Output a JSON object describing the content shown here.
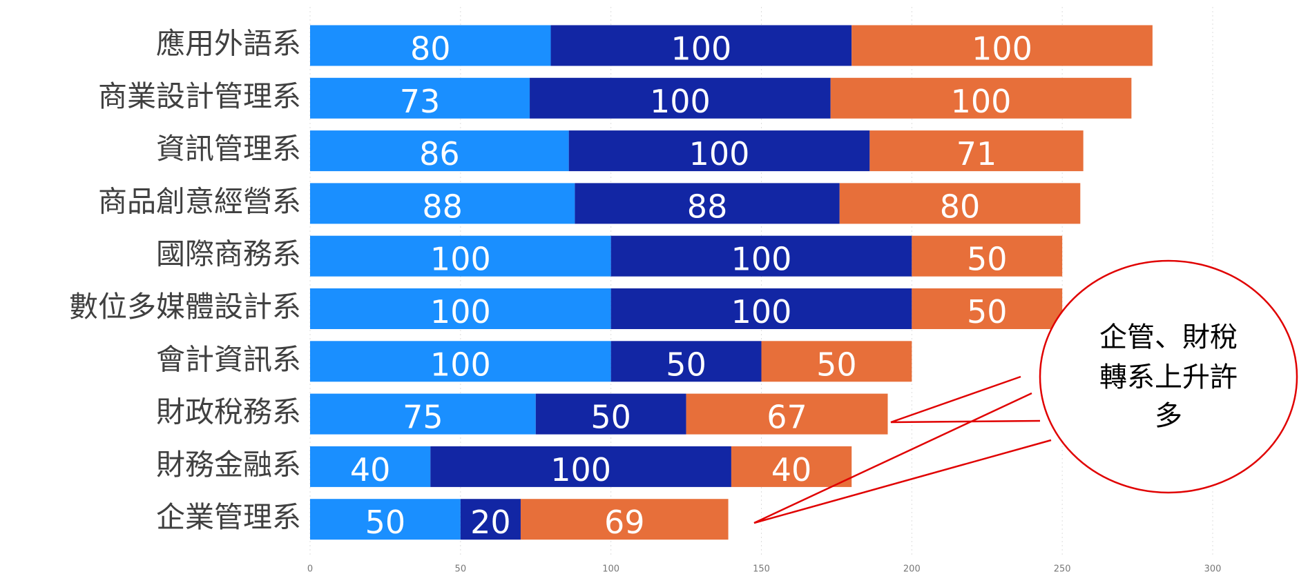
{
  "chart_data": {
    "type": "stacked-bar-horizontal",
    "categories": [
      "應用外語系",
      "商業設計管理系",
      "資訊管理系",
      "商品創意經營系",
      "國際商務系",
      "數位多媒體設計系",
      "會計資訊系",
      "財政稅務系",
      "財務金融系",
      "企業管理系"
    ],
    "series": [
      {
        "color": "#1a8fff",
        "values": [
          80,
          73,
          86,
          88,
          100,
          100,
          100,
          75,
          40,
          50
        ]
      },
      {
        "color": "#1226a4",
        "values": [
          100,
          100,
          100,
          88,
          100,
          100,
          50,
          50,
          100,
          20
        ]
      },
      {
        "color": "#e76f3a",
        "values": [
          100,
          100,
          71,
          80,
          50,
          50,
          50,
          67,
          40,
          69
        ]
      }
    ],
    "xlim": [
      0,
      300
    ],
    "xticks": [
      0,
      50,
      100,
      150,
      200,
      250,
      300
    ],
    "grid": true,
    "annotation": {
      "lines": [
        "企管、財稅",
        "轉系上升許",
        "多"
      ]
    }
  }
}
